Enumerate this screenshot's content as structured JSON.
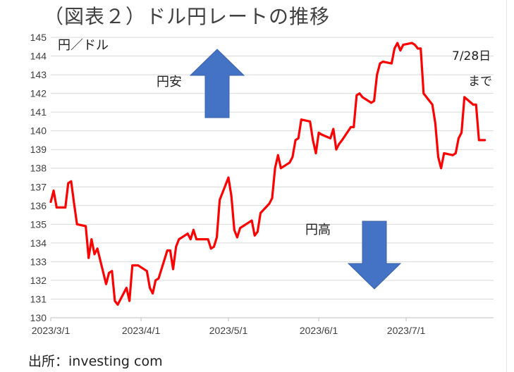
{
  "title": "（図表２）ドル円レートの推移",
  "source": "出所：investing com",
  "chart_data": {
    "type": "line",
    "title": "（図表２）ドル円レートの推移",
    "ylabel": "円／ドル",
    "ylim": [
      130,
      145
    ],
    "yticks": [
      130,
      131,
      132,
      133,
      134,
      135,
      136,
      137,
      138,
      139,
      140,
      141,
      142,
      143,
      144,
      145
    ],
    "xlim": [
      "2023/3/1",
      "2023/7/31"
    ],
    "xticks": [
      "2023/3/1",
      "2023/4/1",
      "2023/5/1",
      "2023/6/1",
      "2023/7/1"
    ],
    "grid": "horizontal",
    "line_color": "#ff0000",
    "annotations": {
      "yen_weak": "円安",
      "yen_strong": "円高",
      "until_line1": "7/28日",
      "until_line2": "まで"
    },
    "arrow_color": "#4472c4",
    "series": [
      {
        "x": [
          "2023/3/1",
          "2023/3/2",
          "2023/3/3",
          "2023/3/6",
          "2023/3/7",
          "2023/3/8",
          "2023/3/9",
          "2023/3/10",
          "2023/3/13",
          "2023/3/14",
          "2023/3/15",
          "2023/3/16",
          "2023/3/17",
          "2023/3/20",
          "2023/3/21",
          "2023/3/22",
          "2023/3/23",
          "2023/3/24",
          "2023/3/27",
          "2023/3/28",
          "2023/3/29",
          "2023/3/30",
          "2023/3/31",
          "2023/4/3",
          "2023/4/4",
          "2023/4/5",
          "2023/4/6",
          "2023/4/7",
          "2023/4/10",
          "2023/4/11",
          "2023/4/12",
          "2023/4/13",
          "2023/4/14",
          "2023/4/17",
          "2023/4/18",
          "2023/4/19",
          "2023/4/20",
          "2023/4/21",
          "2023/4/24",
          "2023/4/25",
          "2023/4/26",
          "2023/4/27",
          "2023/4/28",
          "2023/5/1",
          "2023/5/2",
          "2023/5/3",
          "2023/5/4",
          "2023/5/5",
          "2023/5/8",
          "2023/5/9",
          "2023/5/10",
          "2023/5/11",
          "2023/5/12",
          "2023/5/15",
          "2023/5/16",
          "2023/5/17",
          "2023/5/18",
          "2023/5/19",
          "2023/5/22",
          "2023/5/23",
          "2023/5/24",
          "2023/5/25",
          "2023/5/26",
          "2023/5/29",
          "2023/5/30",
          "2023/5/31",
          "2023/6/1",
          "2023/6/2",
          "2023/6/5",
          "2023/6/6",
          "2023/6/7",
          "2023/6/8",
          "2023/6/9",
          "2023/6/12",
          "2023/6/13",
          "2023/6/14",
          "2023/6/15",
          "2023/6/16",
          "2023/6/19",
          "2023/6/20",
          "2023/6/21",
          "2023/6/22",
          "2023/6/23",
          "2023/6/26",
          "2023/6/27",
          "2023/6/28",
          "2023/6/29",
          "2023/6/30",
          "2023/7/3",
          "2023/7/4",
          "2023/7/5",
          "2023/7/6",
          "2023/7/7",
          "2023/7/10",
          "2023/7/11",
          "2023/7/12",
          "2023/7/13",
          "2023/7/14",
          "2023/7/17",
          "2023/7/18",
          "2023/7/19",
          "2023/7/20",
          "2023/7/21",
          "2023/7/24",
          "2023/7/25",
          "2023/7/26",
          "2023/7/27",
          "2023/7/28"
        ],
        "y": [
          136.2,
          136.8,
          135.9,
          135.9,
          137.2,
          137.3,
          136.1,
          135.0,
          134.9,
          133.2,
          134.2,
          133.4,
          133.7,
          131.8,
          132.4,
          132.5,
          130.9,
          130.7,
          131.6,
          130.9,
          132.8,
          132.8,
          132.8,
          132.5,
          131.6,
          131.3,
          132.0,
          132.1,
          133.6,
          133.6,
          132.6,
          133.8,
          134.2,
          134.5,
          134.2,
          134.7,
          134.2,
          134.2,
          134.2,
          133.7,
          133.8,
          134.3,
          136.3,
          137.5,
          136.5,
          134.7,
          134.3,
          134.8,
          135.1,
          135.2,
          134.4,
          134.6,
          135.6,
          136.1,
          136.4,
          138.0,
          138.7,
          138.0,
          138.3,
          138.6,
          139.5,
          139.6,
          140.6,
          140.5,
          139.5,
          138.8,
          139.9,
          139.8,
          139.6,
          140.1,
          139.0,
          139.3,
          139.5,
          140.2,
          140.2,
          141.9,
          142.0,
          141.8,
          141.5,
          141.6,
          143.0,
          143.6,
          143.7,
          143.6,
          144.4,
          144.7,
          144.3,
          144.6,
          144.7,
          144.6,
          144.4,
          144.4,
          142.0,
          141.4,
          140.4,
          138.6,
          138.0,
          138.8,
          138.7,
          138.8,
          139.6,
          139.9,
          141.8,
          141.4,
          141.4,
          139.5,
          139.5,
          139.5
        ]
      }
    ]
  }
}
